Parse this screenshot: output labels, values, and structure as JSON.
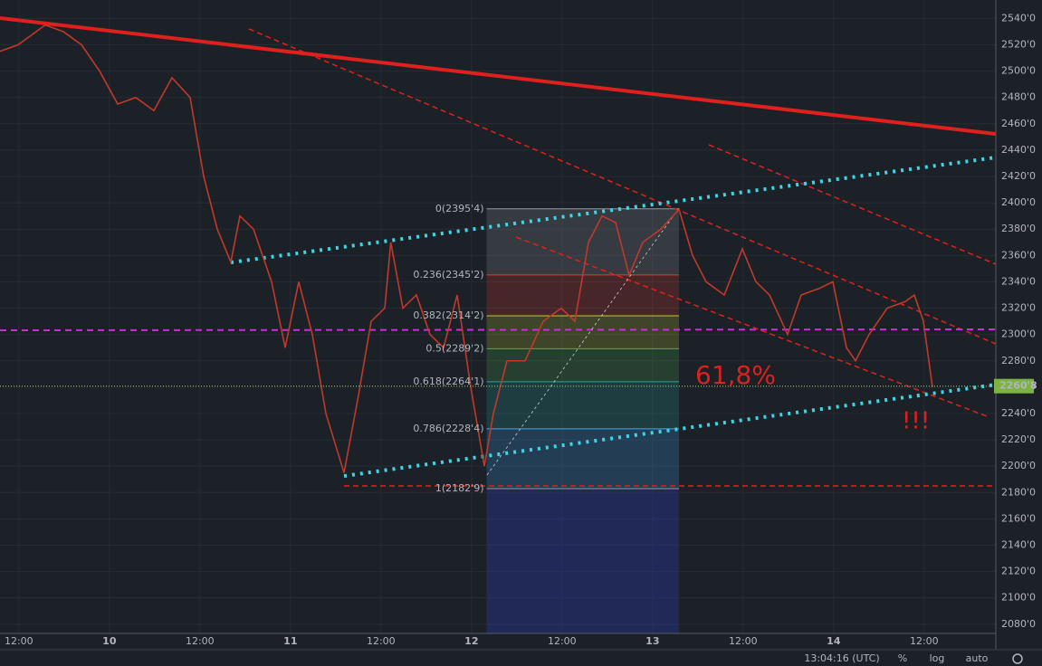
{
  "chart_data": {
    "type": "line",
    "x": [
      -14.5,
      -12.1,
      -8.5,
      -6.1,
      -3.7,
      -1.3,
      1.1,
      3.5,
      5.9,
      8.3,
      10.7,
      12.5,
      14.3,
      16.1,
      17.3,
      19.1,
      21.5,
      23.3,
      25.1,
      26.9,
      28.7,
      31.1,
      32.9,
      34.7,
      36.5,
      37.3,
      38.9,
      40.7,
      42.5,
      44.3,
      46.1,
      47.9,
      49.7,
      50.9,
      52.7,
      55.1,
      57.5,
      59.9,
      61.7,
      63.5,
      65.3,
      67.1,
      68.9,
      70.7,
      73.1,
      75.5,
      77.3,
      79.1,
      81.5,
      83.9,
      85.7,
      87.5,
      89.9,
      91.7,
      94.1,
      95.9,
      97.7,
      98.9,
      100.7,
      103.1,
      105.5,
      106.7,
      107.9,
      109.1
    ],
    "series": [
      {
        "color": "#c0392b",
        "values": [
          2515,
          2520,
          2535,
          2530,
          2520,
          2500,
          2475,
          2480,
          2470,
          2495,
          2480,
          2420,
          2380,
          2355,
          2390,
          2380,
          2340,
          2290,
          2340,
          2300,
          2240,
          2195,
          2250,
          2310,
          2320,
          2370,
          2320,
          2330,
          2300,
          2290,
          2330,
          2260,
          2200,
          2240,
          2280,
          2280,
          2310,
          2320,
          2310,
          2370,
          2390,
          2385,
          2345,
          2370,
          2380,
          2395,
          2360,
          2340,
          2330,
          2365,
          2340,
          2330,
          2300,
          2330,
          2335,
          2340,
          2290,
          2280,
          2300,
          2320,
          2325,
          2330,
          2310,
          2260
        ]
      }
    ],
    "xlim": [
      -14.5,
      117.5
    ],
    "xticks": [
      {
        "value": -12,
        "label": "12:00"
      },
      {
        "value": 0,
        "label": "10"
      },
      {
        "value": 12,
        "label": "12:00"
      },
      {
        "value": 24,
        "label": "11"
      },
      {
        "value": 36,
        "label": "12:00"
      },
      {
        "value": 48,
        "label": "12"
      },
      {
        "value": 60,
        "label": "12:00"
      },
      {
        "value": 72,
        "label": "13"
      },
      {
        "value": 84,
        "label": "12:00"
      },
      {
        "value": 96,
        "label": "14"
      },
      {
        "value": 108,
        "label": "12:00"
      }
    ],
    "ylim": [
      2073,
      2554
    ],
    "yticks": [
      {
        "value": 2080,
        "label": "2080'0"
      },
      {
        "value": 2100,
        "label": "2100'0"
      },
      {
        "value": 2120,
        "label": "2120'0"
      },
      {
        "value": 2140,
        "label": "2140'0"
      },
      {
        "value": 2160,
        "label": "2160'0"
      },
      {
        "value": 2180,
        "label": "2180'0"
      },
      {
        "value": 2200,
        "label": "2200'0"
      },
      {
        "value": 2220,
        "label": "2220'0"
      },
      {
        "value": 2240,
        "label": "2240'0"
      },
      {
        "value": 2260,
        "label": "2260'0"
      },
      {
        "value": 2280,
        "label": "2280'0"
      },
      {
        "value": 2300,
        "label": "2300'0"
      },
      {
        "value": 2320,
        "label": "2320'0"
      },
      {
        "value": 2340,
        "label": "2340'0"
      },
      {
        "value": 2360,
        "label": "2360'0"
      },
      {
        "value": 2380,
        "label": "2380'0"
      },
      {
        "value": 2400,
        "label": "2400'0"
      },
      {
        "value": 2420,
        "label": "2420'0"
      },
      {
        "value": 2440,
        "label": "2440'0"
      },
      {
        "value": 2460,
        "label": "2460'0"
      },
      {
        "value": 2480,
        "label": "2480'0"
      },
      {
        "value": 2500,
        "label": "2500'0"
      },
      {
        "value": 2520,
        "label": "2520'0"
      },
      {
        "value": 2540,
        "label": "2540'0"
      }
    ],
    "grid": true,
    "last_price": {
      "value": 2260.8,
      "label": "2260'8"
    },
    "fib": {
      "x_start": 50,
      "x_end": 75.5,
      "levels": [
        {
          "value": 2395.4,
          "label": "0(2395'4)",
          "color": "#9598a1"
        },
        {
          "value": 2345.2,
          "label": "0.236(2345'2)",
          "color": "#e53935"
        },
        {
          "value": 2314.2,
          "label": "0.382(2314'2)",
          "color": "#c0ca33"
        },
        {
          "value": 2289.2,
          "label": "0.5(2289'2)",
          "color": "#4caf50"
        },
        {
          "value": 2264.1,
          "label": "0.618(2264'1)",
          "color": "#26a69a"
        },
        {
          "value": 2228.4,
          "label": "0.786(2228'4)",
          "color": "#42a5f5"
        },
        {
          "value": 2182.9,
          "label": "1(2182'9)",
          "color": "#9598a1"
        }
      ]
    },
    "annotations": [
      "61,8%",
      "!!!"
    ],
    "toolbar": {
      "time": "13:04:16 (UTC)",
      "percent": "%",
      "log": "log",
      "auto": "auto"
    }
  }
}
